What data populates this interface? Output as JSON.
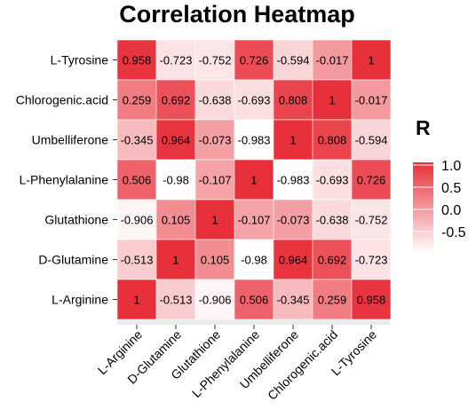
{
  "chart_data": {
    "type": "heatmap",
    "title": "Correlation Heatmap",
    "x_categories": [
      "L-Arginine",
      "D-Glutamine",
      "Glutathione",
      "L-Phenylalanine",
      "Umbelliferone",
      "Chlorogenic.acid",
      "L-Tyrosine"
    ],
    "y_categories": [
      "L-Tyrosine",
      "Chlorogenic.acid",
      "Umbelliferone",
      "L-Phenylalanine",
      "Glutathione",
      "D-Glutamine",
      "L-Arginine"
    ],
    "values": [
      [
        "0.958",
        "-0.723",
        "-0.752",
        "0.726",
        "-0.594",
        "-0.017",
        "1"
      ],
      [
        "0.259",
        "0.692",
        "-0.638",
        "-0.693",
        "0.808",
        "1",
        "-0.017"
      ],
      [
        "-0.345",
        "0.964",
        "-0.073",
        "-0.983",
        "1",
        "0.808",
        "-0.594"
      ],
      [
        "0.506",
        "-0.98",
        "-0.107",
        "1",
        "-0.983",
        "-0.693",
        "0.726"
      ],
      [
        "-0.906",
        "0.105",
        "1",
        "-0.107",
        "-0.073",
        "-0.638",
        "-0.752"
      ],
      [
        "-0.513",
        "1",
        "0.105",
        "-0.98",
        "0.964",
        "0.692",
        "-0.723"
      ],
      [
        "1",
        "-0.513",
        "-0.906",
        "0.506",
        "-0.345",
        "0.259",
        "0.958"
      ]
    ],
    "legend": {
      "title": "R",
      "ticks": [
        "1.0",
        "0.5",
        "0.0",
        "-0.5"
      ],
      "range": [
        -1,
        1
      ],
      "color_low": "#ffffff",
      "color_high": "#e8303a"
    },
    "panel_background": "#ebebeb",
    "grid": true
  }
}
